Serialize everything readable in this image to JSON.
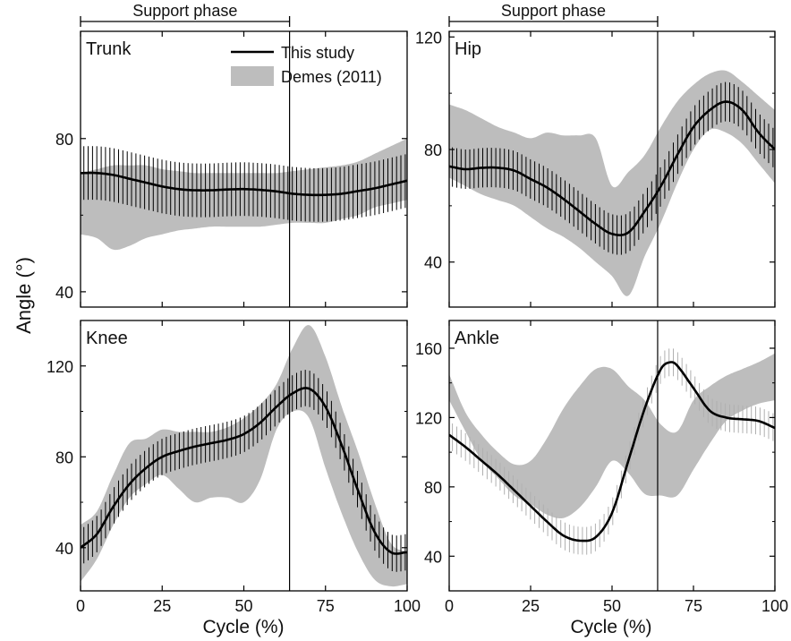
{
  "figure": {
    "ylabel": "Angle (°)",
    "xlabel": "Cycle (%)",
    "support_label": "Support phase",
    "support_end": 64,
    "legend": {
      "study": "This study",
      "demes": "Demes (2011)"
    },
    "colors": {
      "band": "#bdbdbd",
      "line": "#000000",
      "ankle_err": "#b0b0b0"
    }
  },
  "chart_data": [
    {
      "type": "line",
      "panel": "Trunk",
      "xlim": [
        0,
        100
      ],
      "ylim": [
        36,
        108
      ],
      "xticks": [],
      "yticks": [
        40,
        80
      ],
      "support_phase": true,
      "legend": true,
      "series": [
        {
          "name": "This study",
          "x": [
            0,
            5,
            10,
            15,
            20,
            25,
            30,
            35,
            40,
            45,
            50,
            55,
            60,
            65,
            70,
            75,
            80,
            85,
            90,
            95,
            100
          ],
          "y": [
            71,
            71,
            70.5,
            69.5,
            68.5,
            67.5,
            66.8,
            66.5,
            66.5,
            66.7,
            66.8,
            66.6,
            66.2,
            65.6,
            65.3,
            65.3,
            65.6,
            66.3,
            67,
            68,
            69
          ],
          "err": 7
        },
        {
          "name": "Demes (2011)",
          "x": [
            0,
            5,
            10,
            15,
            20,
            25,
            30,
            35,
            40,
            45,
            50,
            55,
            60,
            65,
            70,
            75,
            80,
            85,
            90,
            95,
            100
          ],
          "upper": [
            71,
            72,
            73,
            73,
            73,
            72,
            71.5,
            71,
            71,
            71,
            71,
            71,
            71,
            71.5,
            72,
            72.5,
            73,
            74,
            76,
            78,
            80
          ],
          "lower": [
            55,
            54,
            51,
            52,
            54,
            55,
            56,
            56.5,
            57,
            57,
            57,
            57,
            57.5,
            58,
            58,
            58,
            59,
            60,
            62,
            63,
            64
          ]
        }
      ]
    },
    {
      "type": "line",
      "panel": "Hip",
      "xlim": [
        0,
        100
      ],
      "ylim": [
        24,
        122
      ],
      "xticks": [],
      "yticks": [
        40,
        80,
        120
      ],
      "support_phase": true,
      "legend": false,
      "series": [
        {
          "name": "This study",
          "x": [
            0,
            5,
            10,
            15,
            20,
            25,
            30,
            35,
            40,
            45,
            50,
            55,
            60,
            65,
            70,
            75,
            80,
            85,
            90,
            95,
            100
          ],
          "y": [
            74,
            73,
            73.5,
            73.5,
            72.5,
            69.5,
            66.5,
            62.5,
            58,
            53.5,
            50,
            50.5,
            58,
            67,
            78,
            88,
            94,
            97,
            94,
            86,
            80
          ],
          "err": 7
        },
        {
          "name": "Demes (2011)",
          "x": [
            0,
            5,
            10,
            15,
            20,
            25,
            30,
            35,
            40,
            45,
            50,
            55,
            60,
            65,
            70,
            75,
            80,
            85,
            90,
            95,
            100
          ],
          "upper": [
            96,
            94,
            91,
            88,
            86,
            84,
            86,
            85,
            85,
            84,
            67,
            72,
            78,
            88,
            97,
            103,
            107,
            108,
            104,
            99,
            94
          ],
          "lower": [
            70,
            67,
            64,
            62,
            60,
            56,
            52,
            49,
            45,
            40,
            35,
            28,
            42,
            54,
            68,
            80,
            87,
            86,
            82,
            75,
            68
          ]
        }
      ]
    },
    {
      "type": "line",
      "panel": "Knee",
      "xlim": [
        0,
        100
      ],
      "ylim": [
        21,
        140
      ],
      "xticks": [
        0,
        25,
        50,
        75,
        100
      ],
      "yticks": [
        40,
        80,
        120
      ],
      "support_phase": false,
      "legend": false,
      "series": [
        {
          "name": "This study",
          "x": [
            0,
            5,
            10,
            15,
            20,
            25,
            30,
            35,
            40,
            45,
            50,
            55,
            60,
            65,
            70,
            75,
            80,
            85,
            90,
            95,
            100
          ],
          "y": [
            40,
            46,
            58,
            68,
            75,
            80,
            82.5,
            84.5,
            86,
            87.5,
            90,
            95,
            102,
            108,
            110,
            102,
            85,
            65,
            47,
            38,
            38
          ],
          "err": 8
        },
        {
          "name": "Demes (2011)",
          "x": [
            0,
            5,
            10,
            15,
            20,
            25,
            30,
            35,
            40,
            45,
            50,
            55,
            60,
            65,
            70,
            75,
            80,
            85,
            90,
            95,
            100
          ],
          "upper": [
            50,
            56,
            72,
            86,
            88,
            92,
            91,
            91,
            91,
            93,
            97,
            103,
            112,
            128,
            138,
            124,
            102,
            82,
            60,
            42,
            38
          ],
          "lower": [
            25,
            35,
            50,
            62,
            68,
            72,
            66,
            60,
            62,
            62,
            60,
            70,
            92,
            100,
            97,
            75,
            55,
            38,
            26,
            23,
            24
          ]
        }
      ]
    },
    {
      "type": "line",
      "panel": "Ankle",
      "xlim": [
        0,
        100
      ],
      "ylim": [
        20,
        176
      ],
      "xticks": [
        0,
        25,
        50,
        75,
        100
      ],
      "yticks": [
        40,
        80,
        120,
        160
      ],
      "support_phase": false,
      "legend": false,
      "series": [
        {
          "name": "This study",
          "x": [
            0,
            5,
            10,
            15,
            20,
            25,
            30,
            35,
            40,
            45,
            50,
            55,
            60,
            65,
            68,
            70,
            75,
            80,
            85,
            90,
            95,
            100
          ],
          "y": [
            110,
            103,
            95,
            87,
            78,
            69,
            60,
            52,
            49,
            51,
            65,
            95,
            125,
            148,
            152,
            150,
            137,
            124,
            120,
            119,
            118,
            114
          ],
          "err": 8
        },
        {
          "name": "Demes (2011)",
          "x": [
            0,
            5,
            10,
            15,
            20,
            25,
            30,
            35,
            40,
            45,
            50,
            55,
            60,
            65,
            70,
            75,
            80,
            85,
            90,
            95,
            100
          ],
          "upper": [
            145,
            123,
            110,
            100,
            93,
            95,
            108,
            125,
            138,
            148,
            148,
            138,
            130,
            116,
            112,
            130,
            138,
            144,
            148,
            152,
            157
          ],
          "lower": [
            130,
            112,
            95,
            85,
            75,
            70,
            64,
            62,
            68,
            80,
            95,
            88,
            76,
            75,
            75,
            90,
            105,
            118,
            124,
            128,
            130
          ]
        }
      ]
    }
  ]
}
